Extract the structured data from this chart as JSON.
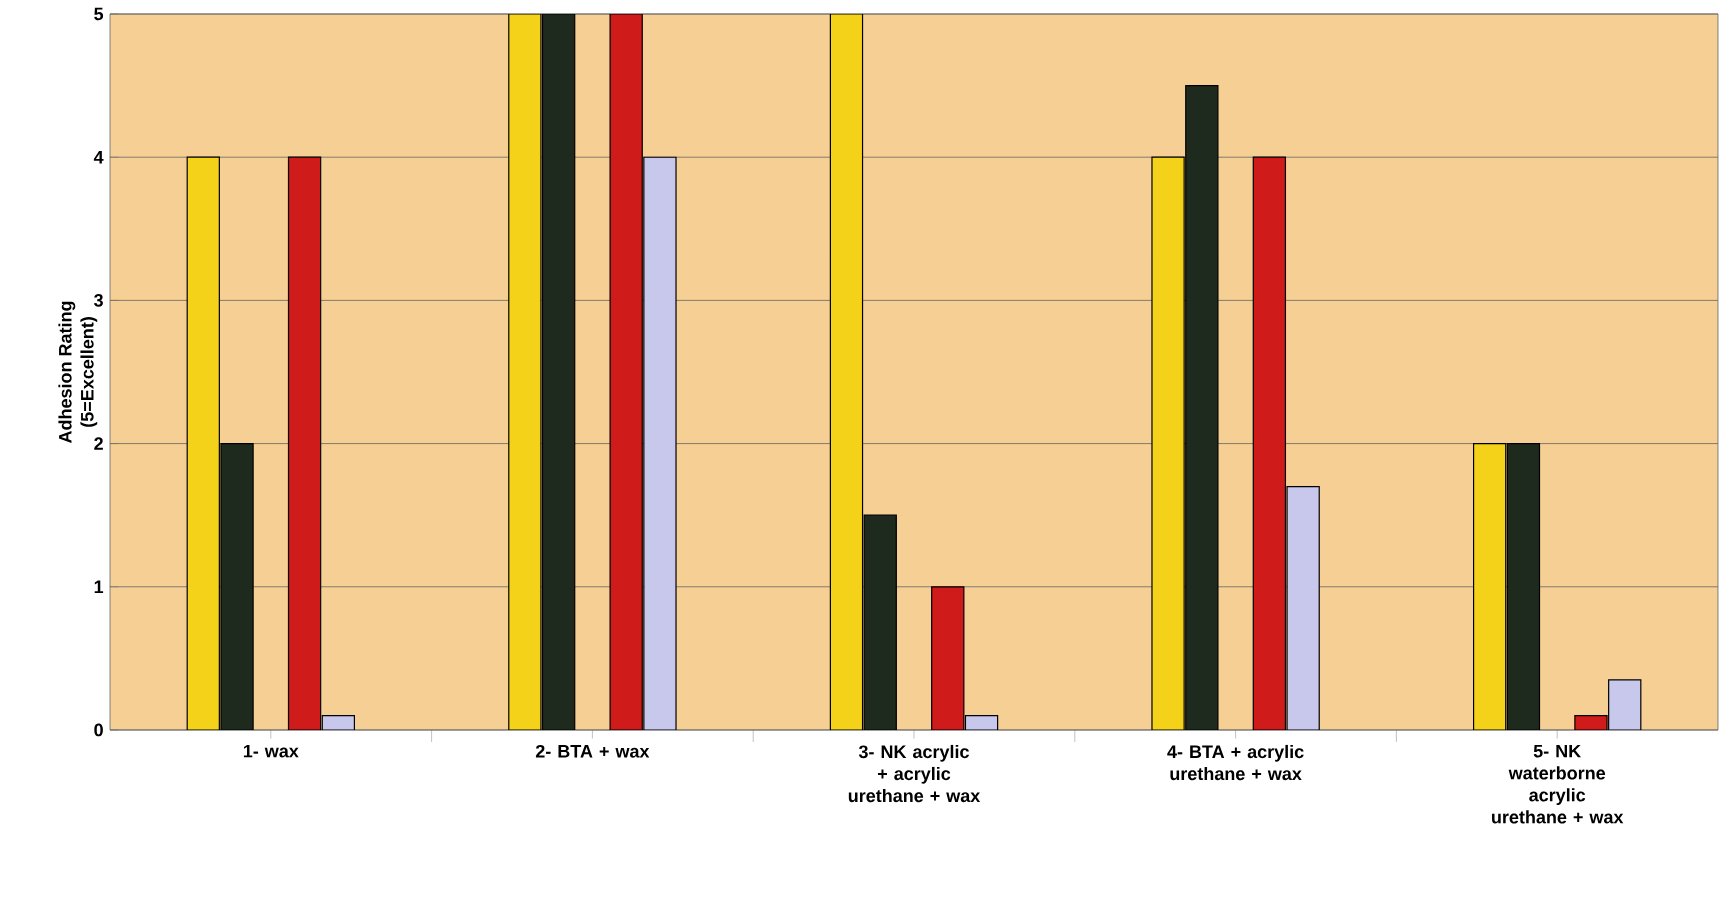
{
  "chart_data": {
    "type": "bar",
    "ylabel": "Adhesion Rating (5=Excellent)",
    "categories": [
      "1- wax",
      "2- BTA + wax",
      "3- NK acrylic + acrylic urethane + wax",
      "4- BTA + acrylic urethane + wax",
      "5- NK waterborne acrylic urethane + wax"
    ],
    "series": [
      {
        "color": "#f5d21a",
        "values": [
          4,
          5,
          5,
          4,
          2
        ]
      },
      {
        "color": "#1f2a1f",
        "values": [
          2,
          5,
          1.5,
          4.5,
          2
        ]
      },
      {
        "color": "#d01b1b",
        "values": [
          4,
          5,
          1,
          4,
          0.1
        ]
      },
      {
        "color": "#c8c8ec",
        "values": [
          0.1,
          4,
          0.1,
          1.7,
          0.35
        ]
      }
    ],
    "ylim": [
      0,
      5
    ],
    "yticks": [
      0,
      1,
      2,
      3,
      4,
      5
    ],
    "grid": "y"
  }
}
